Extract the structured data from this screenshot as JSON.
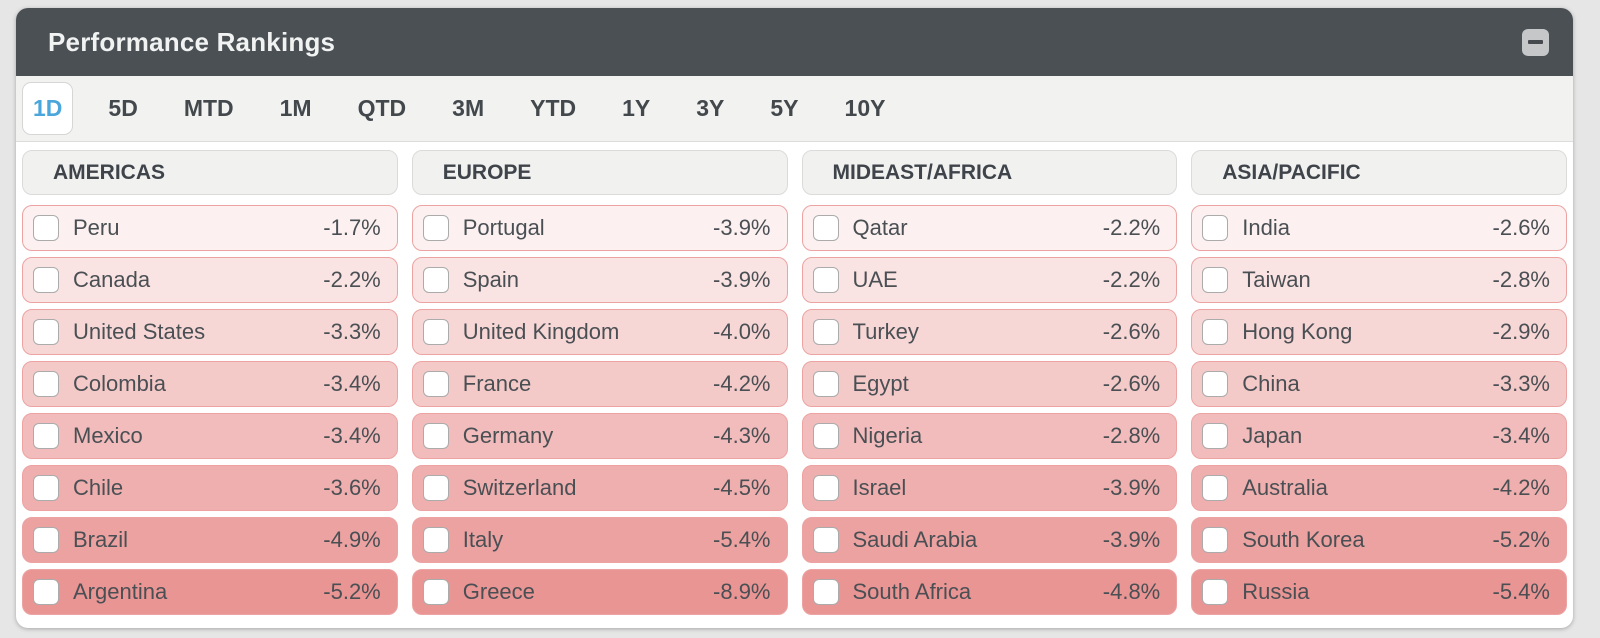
{
  "header": {
    "title": "Performance Rankings",
    "minimize_icon": "minimize"
  },
  "tabs": {
    "selected": "1D",
    "items": [
      "1D",
      "5D",
      "MTD",
      "1M",
      "QTD",
      "3M",
      "YTD",
      "1Y",
      "3Y",
      "5Y",
      "10Y"
    ]
  },
  "regions": [
    {
      "label": "AMERICAS",
      "rows": [
        {
          "name": "Peru",
          "value": "-1.7%"
        },
        {
          "name": "Canada",
          "value": "-2.2%"
        },
        {
          "name": "United States",
          "value": "-3.3%"
        },
        {
          "name": "Colombia",
          "value": "-3.4%"
        },
        {
          "name": "Mexico",
          "value": "-3.4%"
        },
        {
          "name": "Chile",
          "value": "-3.6%"
        },
        {
          "name": "Brazil",
          "value": "-4.9%"
        },
        {
          "name": "Argentina",
          "value": "-5.2%"
        }
      ]
    },
    {
      "label": "EUROPE",
      "rows": [
        {
          "name": "Portugal",
          "value": "-3.9%"
        },
        {
          "name": "Spain",
          "value": "-3.9%"
        },
        {
          "name": "United Kingdom",
          "value": "-4.0%"
        },
        {
          "name": "France",
          "value": "-4.2%"
        },
        {
          "name": "Germany",
          "value": "-4.3%"
        },
        {
          "name": "Switzerland",
          "value": "-4.5%"
        },
        {
          "name": "Italy",
          "value": "-5.4%"
        },
        {
          "name": "Greece",
          "value": "-8.9%"
        }
      ]
    },
    {
      "label": "MIDEAST/AFRICA",
      "rows": [
        {
          "name": "Qatar",
          "value": "-2.2%"
        },
        {
          "name": "UAE",
          "value": "-2.2%"
        },
        {
          "name": "Turkey",
          "value": "-2.6%"
        },
        {
          "name": "Egypt",
          "value": "-2.6%"
        },
        {
          "name": "Nigeria",
          "value": "-2.8%"
        },
        {
          "name": "Israel",
          "value": "-3.9%"
        },
        {
          "name": "Saudi Arabia",
          "value": "-3.9%"
        },
        {
          "name": "South Africa",
          "value": "-4.8%"
        }
      ]
    },
    {
      "label": "ASIA/PACIFIC",
      "rows": [
        {
          "name": "India",
          "value": "-2.6%"
        },
        {
          "name": "Taiwan",
          "value": "-2.8%"
        },
        {
          "name": "Hong Kong",
          "value": "-2.9%"
        },
        {
          "name": "China",
          "value": "-3.3%"
        },
        {
          "name": "Japan",
          "value": "-3.4%"
        },
        {
          "name": "Australia",
          "value": "-4.2%"
        },
        {
          "name": "South Korea",
          "value": "-5.2%"
        },
        {
          "name": "Russia",
          "value": "-5.4%"
        }
      ]
    }
  ],
  "colors": {
    "header_bg": "#4B5055",
    "accent_blue": "#4BA6DB",
    "row_border": "#ECA3A2",
    "negative_heat_scale": [
      "#FCF1F0",
      "#FAE4E3",
      "#F7D7D6",
      "#F4CAC9",
      "#F1BCBB",
      "#EFAFAE",
      "#ECA2A1",
      "#E99594"
    ]
  }
}
